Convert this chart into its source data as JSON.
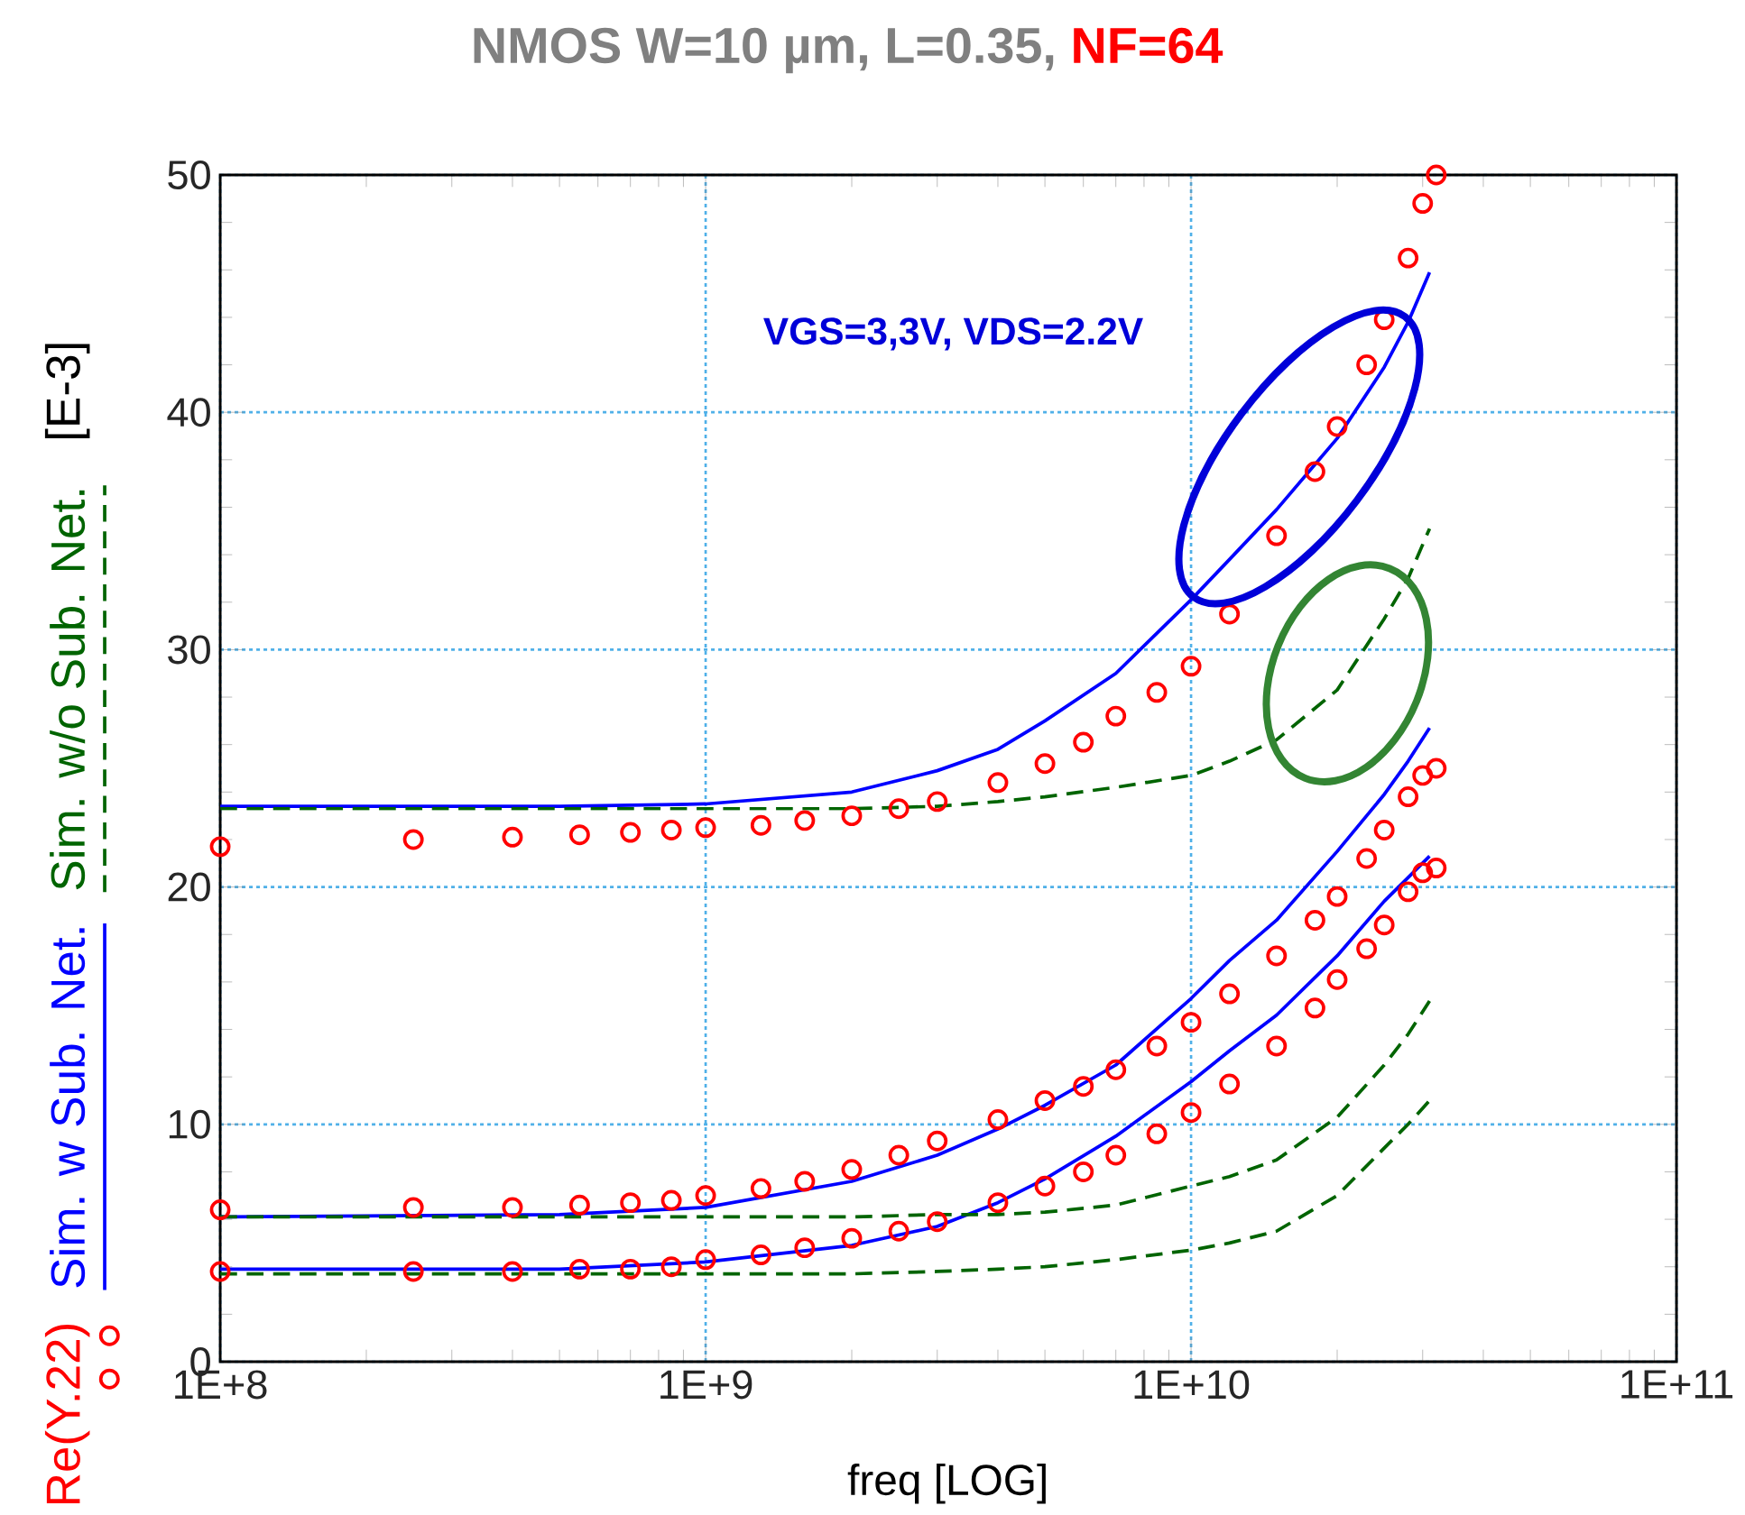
{
  "chart_data": {
    "type": "line",
    "title": "NMOS W=10 µm, L=0.35,",
    "subtitle": "NF=64",
    "xlabel": "freq  [LOG]",
    "ylabel": "[E-3]",
    "annotations": [
      "VGS=3,3V, VDS=2.2V"
    ],
    "log": "x",
    "xlim": [
      100000000,
      100000000000
    ],
    "ylim": [
      0,
      50
    ],
    "xticks": [
      {
        "value": 100000000,
        "label": "1E+8"
      },
      {
        "value": 1000000000,
        "label": "1E+9"
      },
      {
        "value": 10000000000,
        "label": "1E+10"
      },
      {
        "value": 100000000000,
        "label": "1E+11"
      }
    ],
    "yticks": [
      0,
      10,
      20,
      30,
      40,
      50
    ],
    "grid": true,
    "legend": "left",
    "series": [
      {
        "name": "Re(Y.22)",
        "type": "scatter",
        "marker": "circle",
        "color": "#ff0000",
        "x": [
          100000000.0,
          250000000.0,
          400000000.0,
          550000000.0,
          700000000.0,
          850000000.0,
          1000000000.0,
          1300000000.0,
          1600000000.0,
          2000000000.0,
          2500000000.0,
          3000000000.0,
          4000000000.0,
          5000000000.0,
          6000000000.0,
          7000000000.0,
          8500000000.0,
          10000000000.0,
          12000000000.0,
          15000000000.0,
          18000000000.0,
          20000000000.0,
          23000000000.0,
          25000000000.0,
          28000000000.0,
          30000000000.0,
          32000000000.0
        ],
        "values": [
          21.7,
          22.0,
          22.1,
          22.2,
          22.3,
          22.4,
          22.5,
          22.6,
          22.8,
          23.0,
          23.3,
          23.6,
          24.4,
          25.2,
          26.1,
          27.2,
          28.2,
          29.3,
          31.5,
          34.8,
          37.5,
          39.4,
          42.0,
          43.9,
          46.5,
          48.8,
          50.0
        ]
      },
      {
        "type": "scatter",
        "marker": "circle",
        "color": "#ff0000",
        "x": [
          100000000.0,
          250000000.0,
          400000000.0,
          550000000.0,
          700000000.0,
          850000000.0,
          1000000000.0,
          1300000000.0,
          1600000000.0,
          2000000000.0,
          2500000000.0,
          3000000000.0,
          4000000000.0,
          5000000000.0,
          6000000000.0,
          7000000000.0,
          8500000000.0,
          10000000000.0,
          12000000000.0,
          15000000000.0,
          18000000000.0,
          20000000000.0,
          23000000000.0,
          25000000000.0,
          28000000000.0,
          30000000000.0,
          32000000000.0
        ],
        "values": [
          6.4,
          6.5,
          6.5,
          6.6,
          6.7,
          6.8,
          7.0,
          7.3,
          7.6,
          8.1,
          8.7,
          9.3,
          10.2,
          11.0,
          11.6,
          12.3,
          13.3,
          14.3,
          15.5,
          17.1,
          18.6,
          19.6,
          21.2,
          22.4,
          23.8,
          24.7,
          25.0
        ]
      },
      {
        "type": "scatter",
        "marker": "circle",
        "color": "#ff0000",
        "x": [
          100000000.0,
          250000000.0,
          400000000.0,
          550000000.0,
          700000000.0,
          850000000.0,
          1000000000.0,
          1300000000.0,
          1600000000.0,
          2000000000.0,
          2500000000.0,
          3000000000.0,
          4000000000.0,
          5000000000.0,
          6000000000.0,
          7000000000.0,
          8500000000.0,
          10000000000.0,
          12000000000.0,
          15000000000.0,
          18000000000.0,
          20000000000.0,
          23000000000.0,
          25000000000.0,
          28000000000.0,
          30000000000.0,
          32000000000.0
        ],
        "values": [
          3.8,
          3.8,
          3.8,
          3.9,
          3.9,
          4.0,
          4.3,
          4.5,
          4.8,
          5.2,
          5.5,
          5.9,
          6.7,
          7.4,
          8.0,
          8.7,
          9.6,
          10.5,
          11.7,
          13.3,
          14.9,
          16.1,
          17.4,
          18.4,
          19.8,
          20.6,
          20.8
        ]
      },
      {
        "name": "Sim. w Sub. Net.",
        "type": "line",
        "line_style": "solid",
        "color": "#0000ff",
        "x": [
          100000000.0,
          500000000.0,
          1000000000.0,
          2000000000.0,
          3000000000.0,
          4000000000.0,
          5000000000.0,
          7000000000.0,
          10000000000.0,
          12000000000.0,
          15000000000.0,
          20000000000.0,
          25000000000.0,
          28000000000.0,
          31000000000.0
        ],
        "values": [
          23.4,
          23.4,
          23.5,
          24.0,
          24.9,
          25.8,
          27.0,
          29.0,
          32.1,
          33.8,
          35.9,
          38.9,
          41.9,
          43.8,
          45.9
        ]
      },
      {
        "type": "line",
        "line_style": "solid",
        "color": "#0000ff",
        "x": [
          100000000.0,
          500000000.0,
          1000000000.0,
          2000000000.0,
          3000000000.0,
          4000000000.0,
          5000000000.0,
          7000000000.0,
          10000000000.0,
          12000000000.0,
          15000000000.0,
          20000000000.0,
          25000000000.0,
          28000000000.0,
          31000000000.0
        ],
        "values": [
          6.1,
          6.2,
          6.5,
          7.6,
          8.7,
          9.8,
          10.8,
          12.5,
          15.3,
          16.9,
          18.6,
          21.5,
          23.9,
          25.3,
          26.7
        ]
      },
      {
        "type": "line",
        "line_style": "solid",
        "color": "#0000ff",
        "x": [
          100000000.0,
          500000000.0,
          1000000000.0,
          2000000000.0,
          3000000000.0,
          4000000000.0,
          5000000000.0,
          7000000000.0,
          10000000000.0,
          12000000000.0,
          15000000000.0,
          20000000000.0,
          25000000000.0,
          28000000000.0,
          31000000000.0
        ],
        "values": [
          3.9,
          3.9,
          4.2,
          4.9,
          5.7,
          6.7,
          7.7,
          9.5,
          11.8,
          13.1,
          14.6,
          17.1,
          19.4,
          20.4,
          21.3
        ]
      },
      {
        "name": "Sim. w/o Sub. Net.",
        "type": "line",
        "line_style": "dashed",
        "color": "#006400",
        "x": [
          100000000.0,
          500000000.0,
          1000000000.0,
          2000000000.0,
          3000000000.0,
          4000000000.0,
          5000000000.0,
          7000000000.0,
          10000000000.0,
          12000000000.0,
          15000000000.0,
          20000000000.0,
          25000000000.0,
          28000000000.0,
          31000000000.0
        ],
        "values": [
          23.3,
          23.3,
          23.3,
          23.3,
          23.4,
          23.6,
          23.8,
          24.2,
          24.7,
          25.3,
          26.2,
          28.3,
          31.3,
          33.0,
          35.1
        ]
      },
      {
        "type": "line",
        "line_style": "dashed",
        "color": "#006400",
        "x": [
          100000000.0,
          500000000.0,
          1000000000.0,
          2000000000.0,
          3000000000.0,
          4000000000.0,
          5000000000.0,
          7000000000.0,
          10000000000.0,
          12000000000.0,
          15000000000.0,
          20000000000.0,
          25000000000.0,
          28000000000.0,
          31000000000.0
        ],
        "values": [
          6.1,
          6.1,
          6.1,
          6.1,
          6.2,
          6.2,
          6.3,
          6.6,
          7.4,
          7.8,
          8.5,
          10.3,
          12.5,
          13.8,
          15.2
        ]
      },
      {
        "type": "line",
        "line_style": "dashed",
        "color": "#006400",
        "x": [
          100000000.0,
          500000000.0,
          1000000000.0,
          2000000000.0,
          3000000000.0,
          4000000000.0,
          5000000000.0,
          7000000000.0,
          10000000000.0,
          12000000000.0,
          15000000000.0,
          20000000000.0,
          25000000000.0,
          28000000000.0,
          31000000000.0
        ],
        "values": [
          3.7,
          3.7,
          3.7,
          3.7,
          3.8,
          3.9,
          4.0,
          4.3,
          4.7,
          5.0,
          5.5,
          7.0,
          9.0,
          10.0,
          11.0
        ]
      }
    ]
  }
}
